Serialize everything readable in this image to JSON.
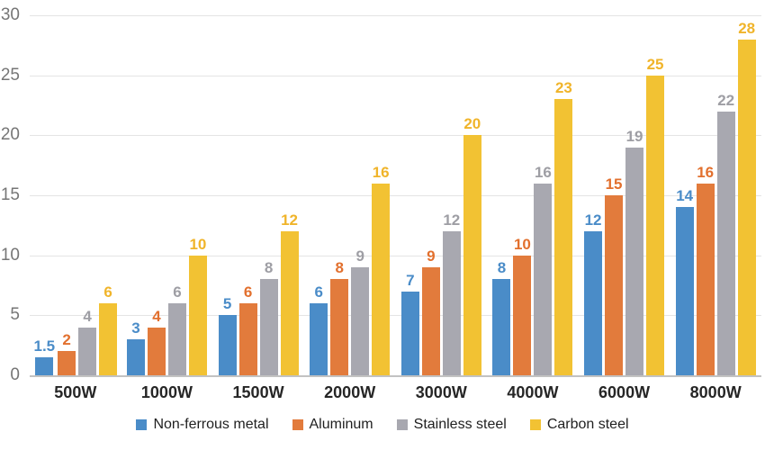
{
  "chart_data": {
    "type": "bar",
    "title": "",
    "xlabel": "",
    "ylabel": "",
    "categories": [
      "500W",
      "1000W",
      "1500W",
      "2000W",
      "3000W",
      "4000W",
      "6000W",
      "8000W"
    ],
    "series": [
      {
        "name": "Non-ferrous metal",
        "color": "#4a8cc8",
        "label_color": "#4a8cc8",
        "values": [
          1.5,
          3,
          5,
          6,
          7,
          8,
          12,
          14
        ]
      },
      {
        "name": "Aluminum",
        "color": "#e27b3c",
        "label_color": "#e2702e",
        "values": [
          2,
          4,
          6,
          8,
          9,
          10,
          15,
          16
        ]
      },
      {
        "name": "Stainless steel",
        "color": "#a8a8b0",
        "label_color": "#9e9ea4",
        "values": [
          4,
          6,
          8,
          9,
          12,
          16,
          19,
          22
        ]
      },
      {
        "name": "Carbon steel",
        "color": "#f2c233",
        "label_color": "#f0b42a",
        "values": [
          6,
          10,
          12,
          16,
          20,
          23,
          25,
          28
        ]
      }
    ],
    "ylim": [
      0,
      30
    ],
    "yticks": [
      0,
      5,
      10,
      15,
      20,
      25,
      30
    ],
    "grid": true,
    "bar_value_labels": true,
    "legend_position": "bottom"
  },
  "colors": {
    "background": "#ffffff",
    "gridline": "#e4e4e4",
    "axis_line": "#c2c2c2",
    "y_tick_text": "#767676",
    "x_tick_text": "#262626",
    "legend_text": "#1f1f1f"
  }
}
